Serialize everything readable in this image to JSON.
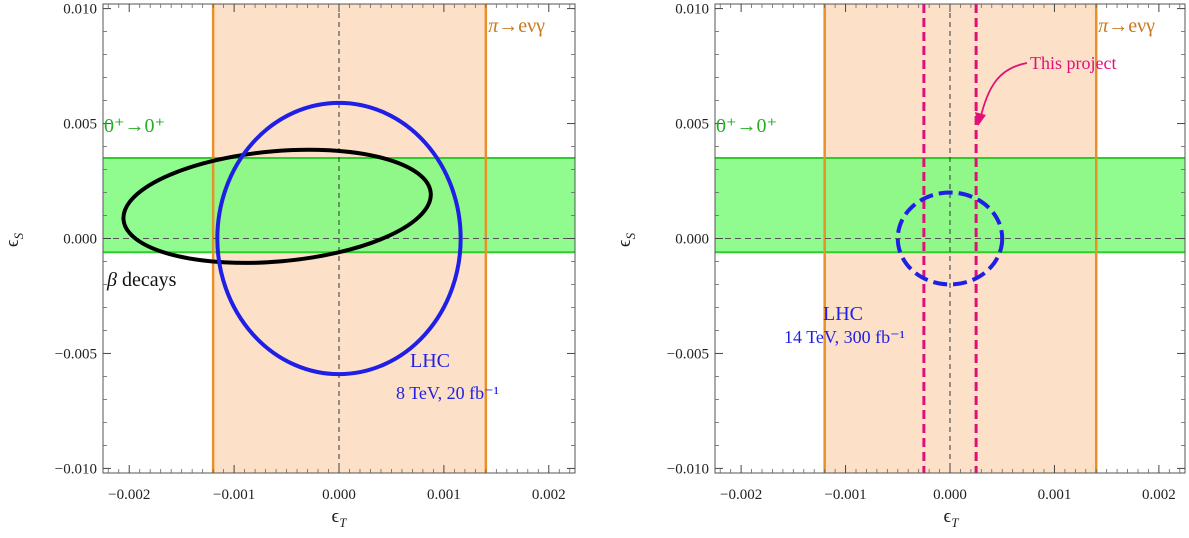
{
  "chart_data": [
    {
      "type": "scatter",
      "xlabel": "ϵ_T",
      "ylabel": "ϵ_S",
      "xlim": [
        -0.00225,
        0.00225
      ],
      "ylim": [
        -0.0102,
        0.0102
      ],
      "x_ticks": [
        -0.002,
        -0.001,
        0.0,
        0.001,
        0.002
      ],
      "x_tick_labels": [
        "−0.002",
        "−0.001",
        "0.000",
        "0.001",
        "0.002"
      ],
      "y_ticks": [
        -0.01,
        -0.005,
        0.0,
        0.005,
        0.01
      ],
      "y_tick_labels": [
        "−0.010",
        "−0.005",
        "0.000",
        "0.005",
        "0.010"
      ],
      "regions": [
        {
          "label": "π→eνγ",
          "axis": "x",
          "range": [
            -0.0012,
            0.0014
          ],
          "color": "#e8902a",
          "fill": "#fce1c8"
        },
        {
          "label": "0⁺→0⁺",
          "axis": "y",
          "range": [
            -0.0006,
            0.0035
          ],
          "color": "#2ecc2e",
          "fill": "#7dfb7d"
        }
      ],
      "ellipses": [
        {
          "label": "β decays",
          "center": [
            -0.00059,
            0.0014
          ],
          "rx": 0.00147,
          "ry": 0.0024,
          "tilt_deg": 5.0,
          "color": "#000000",
          "style": "solid"
        },
        {
          "label": "LHC",
          "sublabel": "8 TeV, 20 fb⁻¹",
          "center": [
            0.0,
            0.0
          ],
          "rx": 0.00116,
          "ry": 0.0059,
          "tilt_deg": 0,
          "color": "#1f1fe6",
          "style": "solid"
        }
      ],
      "reference_lines": [
        {
          "axis": "x",
          "value": 0.0,
          "style": "dashed"
        },
        {
          "axis": "y",
          "value": 0.0,
          "style": "dashed"
        }
      ],
      "annotations": [
        {
          "text": "π→eνγ",
          "color": "#c8791e"
        },
        {
          "text": "0⁺→0⁺",
          "color": "#22b022"
        },
        {
          "text": "β decays",
          "color": "#111111"
        },
        {
          "text": "LHC",
          "color": "#1f1fe6"
        },
        {
          "text": "8 TeV, 20 fb⁻¹",
          "color": "#1f1fe6"
        }
      ],
      "grid": false
    },
    {
      "type": "scatter",
      "xlabel": "ϵ_T",
      "ylabel": "ϵ_S",
      "xlim": [
        -0.00225,
        0.00225
      ],
      "ylim": [
        -0.0102,
        0.0102
      ],
      "x_ticks": [
        -0.002,
        -0.001,
        0.0,
        0.001,
        0.002
      ],
      "x_tick_labels": [
        "−0.002",
        "−0.001",
        "0.000",
        "0.001",
        "0.002"
      ],
      "y_ticks": [
        -0.01,
        -0.005,
        0.0,
        0.005,
        0.01
      ],
      "y_tick_labels": [
        "−0.010",
        "−0.005",
        "0.000",
        "0.005",
        "0.010"
      ],
      "regions": [
        {
          "label": "π→eνγ",
          "axis": "x",
          "range": [
            -0.0012,
            0.0014
          ],
          "color": "#e8902a",
          "fill": "#fce1c8"
        },
        {
          "label": "0⁺→0⁺",
          "axis": "y",
          "range": [
            -0.0006,
            0.0035
          ],
          "color": "#2ecc2e",
          "fill": "#7dfb7d"
        }
      ],
      "ellipses": [
        {
          "label": "LHC",
          "sublabel": "14 TeV, 300 fb⁻¹",
          "center": [
            0.0,
            0.0
          ],
          "rx": 0.0005,
          "ry": 0.002,
          "tilt_deg": 0,
          "color": "#1f1fe6",
          "style": "dashed"
        }
      ],
      "bounds": [
        {
          "label": "This project",
          "axis": "x",
          "values": [
            -0.00025,
            0.00025
          ],
          "color": "#e0107a",
          "style": "dashed"
        }
      ],
      "reference_lines": [
        {
          "axis": "x",
          "value": 0.0,
          "style": "dashed"
        },
        {
          "axis": "y",
          "value": 0.0,
          "style": "dashed"
        }
      ],
      "annotations": [
        {
          "text": "π→eνγ",
          "color": "#c8791e"
        },
        {
          "text": "0⁺→0⁺",
          "color": "#22b022"
        },
        {
          "text": "This project",
          "color": "#e0107a"
        },
        {
          "text": "LHC",
          "color": "#1f1fe6"
        },
        {
          "text": "14 TeV, 300 fb⁻¹",
          "color": "#1f1fe6"
        }
      ],
      "grid": false
    }
  ]
}
